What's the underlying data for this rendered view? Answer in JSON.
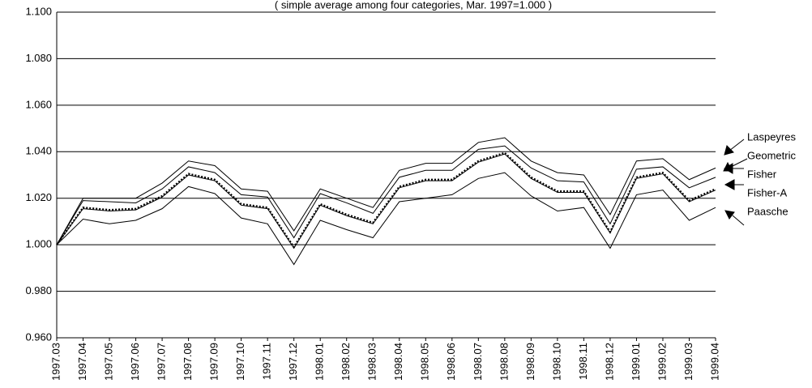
{
  "chart_data": {
    "type": "line",
    "title": "( simple average among four categories, Mar. 1997=1.000 )",
    "categories": [
      "1997.03",
      "1997.04",
      "1997.05",
      "1997.06",
      "1997.07",
      "1997.08",
      "1997.09",
      "1997.10",
      "1997.11",
      "1997.12",
      "1998.01",
      "1998.02",
      "1998.03",
      "1998.04",
      "1998.05",
      "1998.06",
      "1998.07",
      "1998.08",
      "1998.09",
      "1998.10",
      "1998.11",
      "1998.12",
      "1999.01",
      "1999.02",
      "1999.03",
      "1999.04"
    ],
    "series": [
      {
        "name": "Laspeyres",
        "color": "#000000",
        "values": [
          1.0,
          1.02,
          1.02,
          1.02,
          1.0265,
          1.036,
          1.034,
          1.024,
          1.023,
          1.006,
          1.024,
          1.02,
          1.016,
          1.032,
          1.035,
          1.035,
          1.044,
          1.046,
          1.036,
          1.031,
          1.03,
          1.013,
          1.036,
          1.037,
          1.028,
          1.033
        ]
      },
      {
        "name": "Geometric",
        "color": "#000000",
        "values": [
          1.0,
          1.019,
          1.0185,
          1.018,
          1.024,
          1.0335,
          1.031,
          1.0215,
          1.0205,
          1.003,
          1.022,
          1.018,
          1.0135,
          1.029,
          1.032,
          1.032,
          1.041,
          1.0425,
          1.033,
          1.0275,
          1.027,
          1.009,
          1.0325,
          1.0335,
          1.0245,
          1.029
        ]
      },
      {
        "name": "Fisher",
        "color": "#000000",
        "linestyle": "dotted",
        "values": [
          1.0,
          1.016,
          1.015,
          1.0155,
          1.021,
          1.0305,
          1.028,
          1.0175,
          1.016,
          0.999,
          1.0175,
          1.013,
          1.0095,
          1.025,
          1.028,
          1.028,
          1.036,
          1.0395,
          1.029,
          1.023,
          1.023,
          1.0055,
          1.029,
          1.031,
          1.019,
          1.024
        ]
      },
      {
        "name": "Fisher-A",
        "color": "#000000",
        "values": [
          1.0,
          1.0155,
          1.0145,
          1.015,
          1.0205,
          1.03,
          1.0275,
          1.017,
          1.0155,
          0.9985,
          1.017,
          1.0125,
          1.009,
          1.0245,
          1.0275,
          1.0275,
          1.0355,
          1.039,
          1.0285,
          1.0225,
          1.0225,
          1.005,
          1.0285,
          1.0305,
          1.0185,
          1.0235
        ]
      },
      {
        "name": "Paasche",
        "color": "#000000",
        "values": [
          1.0,
          1.011,
          1.009,
          1.0105,
          1.0155,
          1.025,
          1.022,
          1.0115,
          1.009,
          0.9915,
          1.0105,
          1.0065,
          1.003,
          1.0185,
          1.02,
          1.0215,
          1.0285,
          1.031,
          1.021,
          1.0145,
          1.016,
          0.9985,
          1.0215,
          1.0235,
          1.0105,
          1.016
        ]
      }
    ],
    "ylim": [
      0.96,
      1.1
    ],
    "yticks": [
      {
        "value": 0.96,
        "label": "0.960"
      },
      {
        "value": 0.98,
        "label": "0.980"
      },
      {
        "value": 1.0,
        "label": "1.000"
      },
      {
        "value": 1.02,
        "label": "1.020"
      },
      {
        "value": 1.04,
        "label": "1.040"
      },
      {
        "value": 1.06,
        "label": "1.060"
      },
      {
        "value": 1.08,
        "label": "1.080"
      },
      {
        "value": 1.1,
        "label": "1.100"
      }
    ],
    "grid": true
  }
}
